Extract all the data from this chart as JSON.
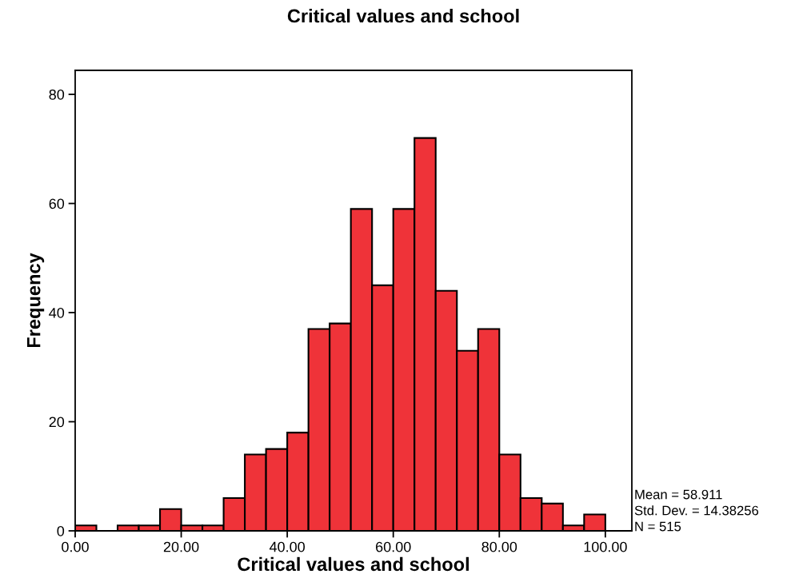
{
  "chart_data": {
    "type": "histogram",
    "title": "Critical values and school",
    "xlabel": "Critical values and school",
    "ylabel": "Frequency",
    "bins": [
      0,
      4,
      8,
      12,
      16,
      20,
      24,
      28,
      32,
      36,
      40,
      44,
      48,
      52,
      56,
      60,
      64,
      68,
      72,
      76,
      80,
      84,
      88,
      92,
      96,
      100
    ],
    "values": [
      1,
      0,
      1,
      1,
      4,
      1,
      1,
      6,
      14,
      15,
      18,
      37,
      38,
      59,
      45,
      59,
      72,
      44,
      33,
      37,
      14,
      6,
      5,
      1,
      3
    ],
    "color": "#ef3339",
    "xlim": [
      0,
      105
    ],
    "ylim": [
      0,
      84.4
    ],
    "xticks": [
      {
        "value": 0,
        "label": "0.00"
      },
      {
        "value": 20,
        "label": "20.00"
      },
      {
        "value": 40,
        "label": "40.00"
      },
      {
        "value": 60,
        "label": "60.00"
      },
      {
        "value": 80,
        "label": "80.00"
      },
      {
        "value": 100,
        "label": "100.00"
      }
    ],
    "yticks": [
      0,
      20,
      40,
      60,
      80
    ],
    "grid": false,
    "annotations": [
      "Mean = 58.911",
      "Std. Dev. = 14.38256",
      "N = 515"
    ]
  }
}
